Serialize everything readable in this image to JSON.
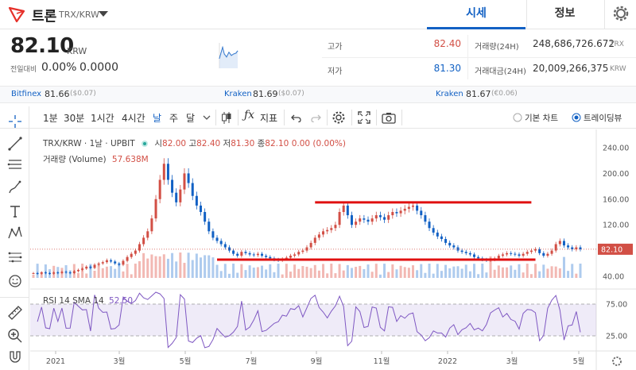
{
  "header": {
    "coin_name": "트론",
    "pair": "TRX/KRW",
    "tabs": [
      {
        "label": "시세",
        "active": true
      },
      {
        "label": "정보",
        "active": false
      }
    ]
  },
  "price": {
    "current": "82.10",
    "unit": "KRW",
    "change_label": "전일대비",
    "change_pct": "0.00%",
    "change_val": "0.0000"
  },
  "stats": {
    "high_label": "고가",
    "high_val": "82.40",
    "low_label": "저가",
    "low_val": "81.30",
    "vol_label": "거래량(24H)",
    "vol_val": "248,686,726.672",
    "vol_unit": "TRX",
    "amt_label": "거래대금(24H)",
    "amt_val": "20,009,266,375",
    "amt_unit": "KRW"
  },
  "exchanges": [
    {
      "name": "Bitfinex",
      "value": "81.66",
      "change": "($0.07)"
    },
    {
      "name": "Kraken",
      "value": "81.69",
      "change": "($0.07)"
    },
    {
      "name": "Kraken",
      "value": "81.67",
      "change": "(€0.06)"
    }
  ],
  "toolbar": {
    "intervals": [
      "1분",
      "30분",
      "1시간",
      "4시간",
      "날",
      "주",
      "달"
    ],
    "active_interval": "날",
    "indicators_label": "지표",
    "chart_options": [
      {
        "label": "기본 차트",
        "selected": false
      },
      {
        "label": "트레이딩뷰",
        "selected": true
      }
    ]
  },
  "legend": {
    "symbol": "TRX/KRW · 1날 · UPBIT",
    "o_label": "시",
    "o_val": "82.00",
    "h_label": "고",
    "h_val": "82.40",
    "l_label": "저",
    "l_val": "81.30",
    "c_label": "종",
    "c_val": "82.10",
    "chg": "0.00 (0.00%)",
    "volume_label": "거래량 (Volume)",
    "volume_val": "57.638M",
    "rsi_label": "RSI 14 SMA 14",
    "rsi_val": "52.50"
  },
  "chart_data": {
    "type": "line",
    "price_axis_ticks": [
      240,
      200,
      160,
      120,
      80,
      40
    ],
    "price_axis_labels": [
      "240.00",
      "200.00",
      "160.00",
      "120.00",
      "82.10",
      "40.00"
    ],
    "last_price": 82.1,
    "rsi_axis_labels": [
      "75.00",
      "25.00"
    ],
    "x_labels": [
      "2021",
      "3월",
      "5월",
      "7월",
      "9월",
      "11월",
      "2022",
      "3월",
      "5월"
    ],
    "price_close": [
      45,
      44,
      46,
      45,
      44,
      46,
      45,
      47,
      46,
      45,
      48,
      50,
      52,
      55,
      53,
      58,
      60,
      62,
      65,
      63,
      60,
      58,
      64,
      70,
      75,
      80,
      90,
      100,
      110,
      130,
      160,
      190,
      215,
      190,
      170,
      155,
      175,
      200,
      185,
      165,
      150,
      140,
      125,
      110,
      100,
      95,
      90,
      85,
      80,
      75,
      72,
      78,
      76,
      74,
      73,
      75,
      72,
      70,
      68,
      66,
      65,
      67,
      69,
      72,
      74,
      78,
      80,
      85,
      92,
      100,
      105,
      110,
      112,
      115,
      120,
      140,
      150,
      135,
      120,
      125,
      130,
      128,
      125,
      130,
      135,
      132,
      128,
      135,
      140,
      138,
      142,
      145,
      148,
      150,
      142,
      135,
      125,
      115,
      108,
      102,
      98,
      92,
      88,
      85,
      80,
      78,
      76,
      74,
      70,
      68,
      66,
      65,
      66,
      68,
      72,
      74,
      76,
      75,
      74,
      72,
      75,
      78,
      80,
      82,
      76,
      72,
      75,
      80,
      90,
      95,
      88,
      85,
      82,
      85,
      82
    ]
  },
  "colors": {
    "up": "#d24f45",
    "down": "#1261c4",
    "accent": "#1261c4",
    "trendline": "#e01010",
    "rsi": "#7e57c2"
  }
}
